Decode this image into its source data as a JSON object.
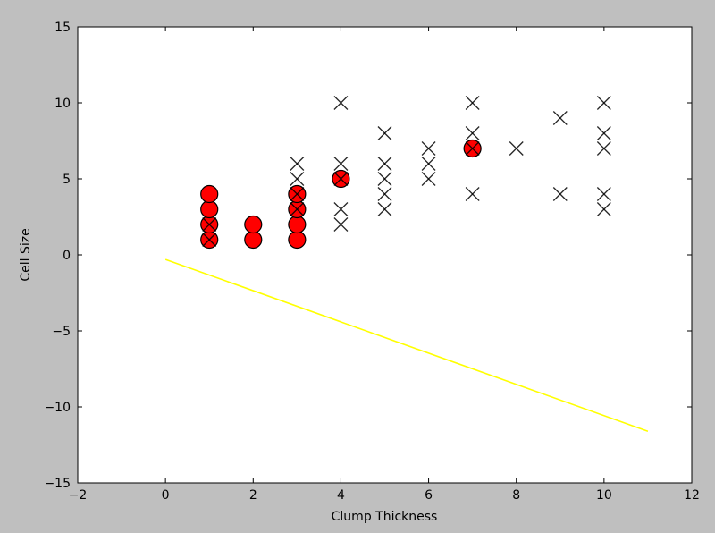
{
  "chart_data": {
    "type": "scatter",
    "title": "",
    "xlabel": "Clump Thickness",
    "ylabel": "Cell Size",
    "xlim": [
      -2,
      12
    ],
    "ylim": [
      -15,
      15
    ],
    "xticks": [
      -2,
      0,
      2,
      4,
      6,
      8,
      10,
      12
    ],
    "yticks": [
      -15,
      -10,
      -5,
      0,
      5,
      10,
      15
    ],
    "xtick_labels": [
      "−2",
      "0",
      "2",
      "4",
      "6",
      "8",
      "10",
      "12"
    ],
    "ytick_labels": [
      "−15",
      "−10",
      "−5",
      "0",
      "5",
      "10",
      "15"
    ],
    "grid": false,
    "legend": "none",
    "series": [
      {
        "marker": "circle",
        "color": "#ff0000",
        "edge_color": "#000000",
        "points": [
          [
            1,
            1
          ],
          [
            1,
            2
          ],
          [
            1,
            3
          ],
          [
            1,
            4
          ],
          [
            2,
            1
          ],
          [
            2,
            2
          ],
          [
            3,
            1
          ],
          [
            3,
            2
          ],
          [
            3,
            3
          ],
          [
            3,
            4
          ],
          [
            4,
            5
          ],
          [
            7,
            7
          ]
        ]
      },
      {
        "marker": "x",
        "color": "#000000",
        "points": [
          [
            1,
            1
          ],
          [
            1,
            2
          ],
          [
            3,
            3
          ],
          [
            3,
            4
          ],
          [
            3,
            5
          ],
          [
            3,
            6
          ],
          [
            4,
            2
          ],
          [
            4,
            3
          ],
          [
            4,
            5
          ],
          [
            4,
            6
          ],
          [
            4,
            10
          ],
          [
            5,
            3
          ],
          [
            5,
            4
          ],
          [
            5,
            5
          ],
          [
            5,
            6
          ],
          [
            5,
            8
          ],
          [
            6,
            5
          ],
          [
            6,
            6
          ],
          [
            6,
            7
          ],
          [
            7,
            4
          ],
          [
            7,
            7
          ],
          [
            7,
            8
          ],
          [
            7,
            10
          ],
          [
            8,
            7
          ],
          [
            9,
            4
          ],
          [
            9,
            9
          ],
          [
            10,
            3
          ],
          [
            10,
            4
          ],
          [
            10,
            7
          ],
          [
            10,
            8
          ],
          [
            10,
            10
          ]
        ]
      },
      {
        "marker": "line",
        "color": "#ffff00",
        "points": [
          [
            0,
            -0.3
          ],
          [
            11,
            -11.6
          ]
        ]
      }
    ]
  }
}
